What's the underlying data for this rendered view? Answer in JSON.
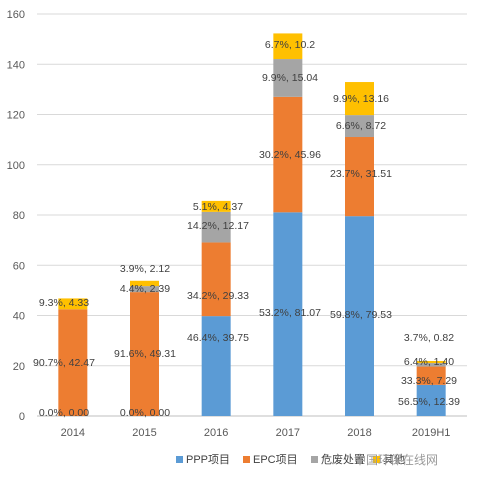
{
  "chart_data": {
    "type": "bar",
    "stacked": true,
    "categories": [
      "2014",
      "2015",
      "2016",
      "2017",
      "2018",
      "2019H1"
    ],
    "ylim": [
      0,
      160
    ],
    "yticks": [
      0,
      20,
      40,
      60,
      80,
      100,
      120,
      140,
      160
    ],
    "grid": true,
    "legend_position": "bottom-right",
    "series": [
      {
        "name": "PPP项目",
        "color": "#5B9BD5",
        "values": [
          0.0,
          0.0,
          39.75,
          81.07,
          79.53,
          12.39
        ],
        "labels": [
          "0.0%, 0.00",
          "0.0%, 0.00",
          "46.4%, 39.75",
          "53.2%, 81.07",
          "59.8%, 79.53",
          "56.5%, 12.39"
        ]
      },
      {
        "name": "EPC项目",
        "color": "#ED7D31",
        "values": [
          42.47,
          49.31,
          29.33,
          45.96,
          31.51,
          7.29
        ],
        "labels": [
          "90.7%, 42.47",
          "91.6%, 49.31",
          "34.2%, 29.33",
          "30.2%, 45.96",
          "23.7%, 31.51",
          "33.3%, 7.29"
        ]
      },
      {
        "name": "危废处置",
        "color": "#A5A5A5",
        "values": [
          0.0,
          2.39,
          12.17,
          15.04,
          8.72,
          1.4
        ],
        "labels": [
          "",
          "4.4%, 2.39",
          "14.2%, 12.17",
          "9.9%, 15.04",
          "6.6%, 8.72",
          "6.4%, 1.40"
        ]
      },
      {
        "name": "其他",
        "color": "#FFC000",
        "values": [
          4.33,
          2.12,
          4.37,
          10.2,
          13.16,
          0.82
        ],
        "labels": [
          "9.3%, 4.33",
          "3.9%, 2.12",
          "5.1%, 4.37",
          "6.7%, 10.2",
          "9.9%, 13.16",
          "3.7%, 0.82"
        ]
      }
    ],
    "legend_labels": [
      "PPP项目",
      "EPC项目",
      "危废处置",
      "其他"
    ]
  },
  "watermark": "中国环保在线网"
}
